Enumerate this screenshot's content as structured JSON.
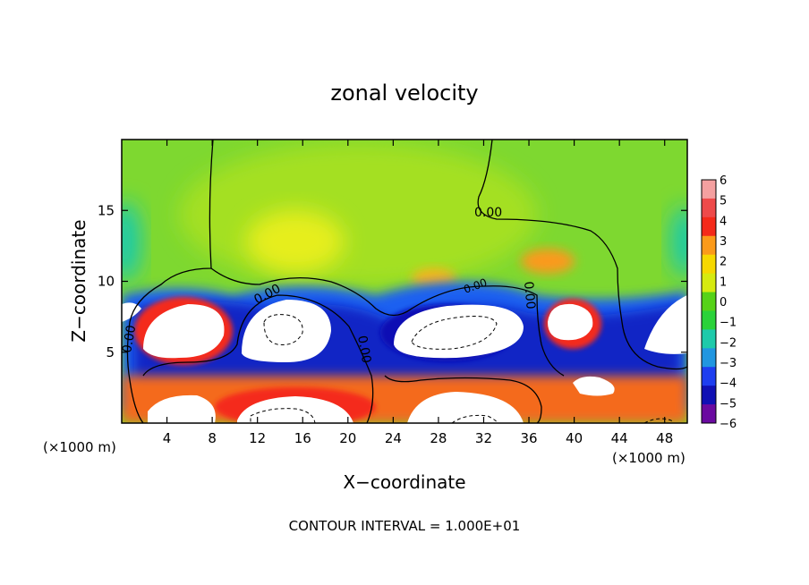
{
  "chart_data": {
    "type": "heatmap",
    "title": "zonal velocity",
    "xlabel": "X−coordinate",
    "ylabel": "Z−coordinate",
    "x_unit_left": "(×1000 m)",
    "x_unit_right": "(×1000 m)",
    "footer": "CONTOUR INTERVAL = 1.000E+01",
    "xlim": [
      0,
      50
    ],
    "ylim": [
      0,
      20
    ],
    "x_ticks": [
      4,
      8,
      12,
      16,
      20,
      24,
      28,
      32,
      36,
      40,
      44,
      48
    ],
    "y_ticks": [
      5,
      10,
      15
    ],
    "colorbar": {
      "levels": [
        6,
        5,
        4,
        3,
        2,
        1,
        0,
        -1,
        -2,
        -3,
        -4,
        -5,
        -6
      ],
      "colors": [
        "#f4a0a0",
        "#ee4a4a",
        "#f42a1a",
        "#fb9a1a",
        "#f6d800",
        "#d6ea10",
        "#56d218",
        "#2ad23a",
        "#1ecaaa",
        "#2196e0",
        "#1e3ef0",
        "#1010b4",
        "#6a0aa0"
      ]
    },
    "contour_labels": [
      "0.00",
      "0.00",
      "0.00",
      "0.00",
      "0.00",
      "0.00"
    ],
    "colors": {
      "background_field": "#7ed830",
      "upper_green": "#8cdc28",
      "yellow_core": "#e6ee1a",
      "orange_core": "#fb9a1a",
      "red_core": "#f42a1a",
      "white_core": "#ffffff",
      "blue_core": "#1e3ef0",
      "navy_core": "#1010b4",
      "cyan_core": "#1ecaaa",
      "contour_line": "#000000"
    }
  }
}
